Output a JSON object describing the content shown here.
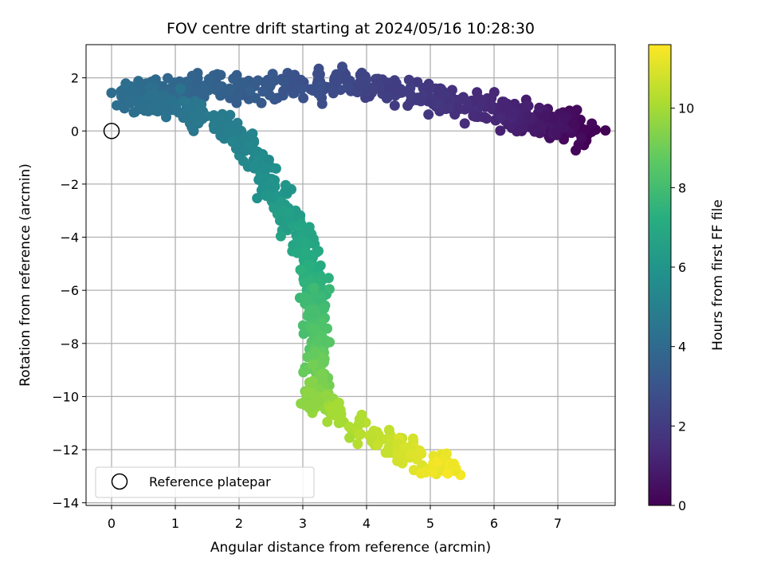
{
  "chart_data": {
    "type": "scatter",
    "title": "FOV centre drift starting at 2024/05/16 10:28:30",
    "xlabel": "Angular distance from reference (arcmin)",
    "ylabel": "Rotation from reference (arcmin)",
    "xlim": [
      -0.4,
      7.9
    ],
    "ylim": [
      -14.1,
      3.25
    ],
    "x_ticks": [
      0,
      1,
      2,
      3,
      4,
      5,
      6,
      7
    ],
    "y_ticks": [
      2,
      0,
      -2,
      -4,
      -6,
      -8,
      -10,
      -12,
      -14
    ],
    "grid": true,
    "legend": {
      "placement": "lower-left",
      "entries": [
        "Reference platepar"
      ]
    },
    "colorbar": {
      "label": "Hours from first FF file",
      "colormap": "viridis",
      "range": [
        0,
        11.6
      ],
      "ticks": [
        0,
        2,
        4,
        6,
        8,
        10
      ]
    },
    "reference_point": {
      "x": 0,
      "y": 0
    },
    "drift_path": [
      {
        "x": 7.5,
        "y": -0.2,
        "hours": 0.0
      },
      {
        "x": 7.2,
        "y": 0.2,
        "hours": 0.3
      },
      {
        "x": 6.9,
        "y": 0.3,
        "hours": 0.6
      },
      {
        "x": 6.6,
        "y": 0.4,
        "hours": 0.9
      },
      {
        "x": 6.3,
        "y": 0.6,
        "hours": 1.1
      },
      {
        "x": 6.0,
        "y": 0.8,
        "hours": 1.3
      },
      {
        "x": 5.5,
        "y": 0.9,
        "hours": 1.6
      },
      {
        "x": 5.1,
        "y": 1.2,
        "hours": 1.8
      },
      {
        "x": 4.6,
        "y": 1.4,
        "hours": 2.1
      },
      {
        "x": 4.1,
        "y": 1.7,
        "hours": 2.3
      },
      {
        "x": 3.6,
        "y": 1.8,
        "hours": 2.6
      },
      {
        "x": 3.0,
        "y": 1.7,
        "hours": 2.9
      },
      {
        "x": 2.5,
        "y": 1.7,
        "hours": 3.2
      },
      {
        "x": 2.0,
        "y": 1.6,
        "hours": 3.5
      },
      {
        "x": 1.5,
        "y": 1.6,
        "hours": 3.7
      },
      {
        "x": 1.0,
        "y": 1.6,
        "hours": 3.9
      },
      {
        "x": 0.5,
        "y": 1.4,
        "hours": 4.1
      },
      {
        "x": 0.2,
        "y": 1.3,
        "hours": 4.2
      },
      {
        "x": 0.6,
        "y": 1.0,
        "hours": 4.3
      },
      {
        "x": 1.1,
        "y": 0.8,
        "hours": 4.5
      },
      {
        "x": 1.6,
        "y": 0.4,
        "hours": 4.8
      },
      {
        "x": 2.0,
        "y": -0.3,
        "hours": 5.1
      },
      {
        "x": 2.3,
        "y": -1.1,
        "hours": 5.5
      },
      {
        "x": 2.5,
        "y": -2.0,
        "hours": 5.9
      },
      {
        "x": 2.7,
        "y": -2.9,
        "hours": 6.3
      },
      {
        "x": 2.9,
        "y": -3.7,
        "hours": 6.7
      },
      {
        "x": 3.1,
        "y": -4.5,
        "hours": 7.0
      },
      {
        "x": 3.2,
        "y": -5.5,
        "hours": 7.4
      },
      {
        "x": 3.2,
        "y": -6.5,
        "hours": 7.9
      },
      {
        "x": 3.2,
        "y": -7.5,
        "hours": 8.3
      },
      {
        "x": 3.2,
        "y": -8.5,
        "hours": 8.8
      },
      {
        "x": 3.2,
        "y": -9.3,
        "hours": 9.2
      },
      {
        "x": 3.2,
        "y": -10.0,
        "hours": 9.6
      },
      {
        "x": 3.5,
        "y": -10.7,
        "hours": 10.0
      },
      {
        "x": 4.0,
        "y": -11.4,
        "hours": 10.4
      },
      {
        "x": 4.5,
        "y": -12.0,
        "hours": 10.8
      },
      {
        "x": 5.0,
        "y": -12.5,
        "hours": 11.2
      },
      {
        "x": 5.4,
        "y": -12.7,
        "hours": 11.5
      }
    ]
  }
}
